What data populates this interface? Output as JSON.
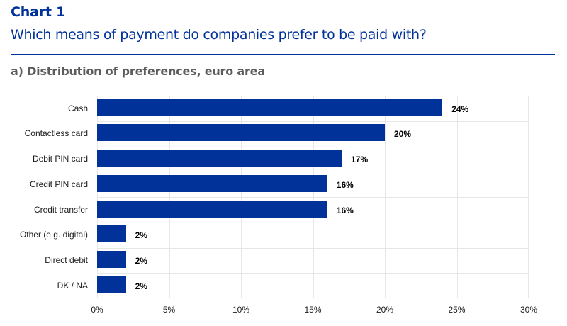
{
  "header": {
    "chart_number": "Chart 1",
    "title": "Which means of payment do companies prefer to be paid with?",
    "panel_title": "a) Distribution of preferences, euro area"
  },
  "colors": {
    "brand": "#003299",
    "bar": "#003299",
    "grid": "#e6e6e6",
    "panel_title": "#5c5c5c"
  },
  "x_ticks": [
    "0%",
    "5%",
    "10%",
    "15%",
    "20%",
    "25%",
    "30%"
  ],
  "rows": [
    {
      "label": "Cash",
      "value": 24,
      "value_label": "24%"
    },
    {
      "label": "Contactless card",
      "value": 20,
      "value_label": "20%"
    },
    {
      "label": "Debit PIN card",
      "value": 17,
      "value_label": "17%"
    },
    {
      "label": "Credit PIN card",
      "value": 16,
      "value_label": "16%"
    },
    {
      "label": "Credit transfer",
      "value": 16,
      "value_label": "16%"
    },
    {
      "label": "Other (e.g. digital)",
      "value": 2,
      "value_label": "2%"
    },
    {
      "label": "Direct debit",
      "value": 2,
      "value_label": "2%"
    },
    {
      "label": "DK / NA",
      "value": 2,
      "value_label": "2%"
    }
  ],
  "chart_data": {
    "type": "bar",
    "orientation": "horizontal",
    "title": "Which means of payment do companies prefer to be paid with?",
    "subtitle": "a) Distribution of preferences, euro area",
    "categories": [
      "Cash",
      "Contactless card",
      "Debit PIN card",
      "Credit PIN card",
      "Credit transfer",
      "Other (e.g. digital)",
      "Direct debit",
      "DK / NA"
    ],
    "values": [
      24,
      20,
      17,
      16,
      16,
      2,
      2,
      2
    ],
    "data_labels": [
      "24%",
      "20%",
      "17%",
      "16%",
      "16%",
      "2%",
      "2%",
      "2%"
    ],
    "xlabel": "",
    "ylabel": "",
    "xlim": [
      0,
      30
    ],
    "x_ticks": [
      "0%",
      "5%",
      "10%",
      "15%",
      "20%",
      "25%",
      "30%"
    ],
    "grid": true,
    "legend": null,
    "units": "%"
  }
}
